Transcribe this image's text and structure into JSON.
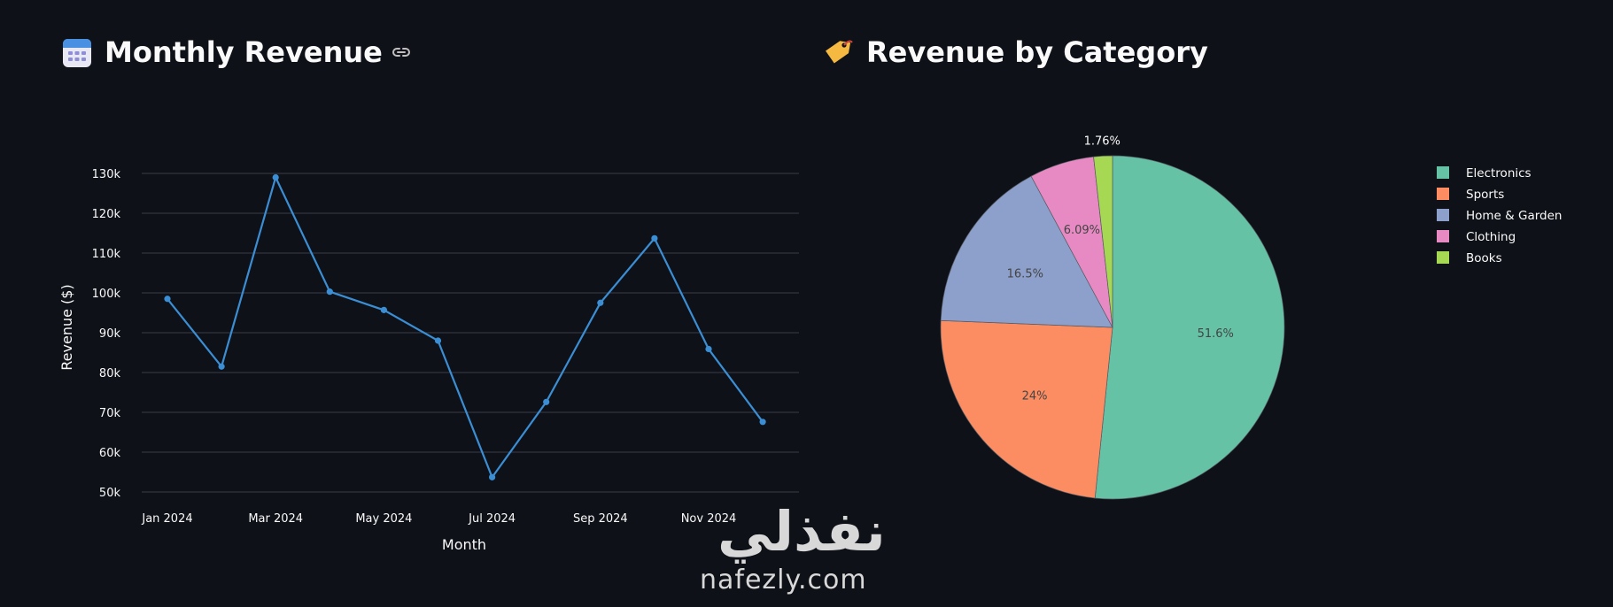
{
  "line_section": {
    "title": "Monthly Revenue",
    "icon": "calendar-icon",
    "link_icon": "link-icon"
  },
  "pie_section": {
    "title": "Revenue by Category",
    "icon": "tag-icon"
  },
  "watermark": {
    "arabic": "نفذلي",
    "latin": "nafezly.com"
  },
  "chart_data": [
    {
      "type": "line",
      "xlabel": "Month",
      "ylabel": "Revenue ($)",
      "x": [
        "2024-01",
        "2024-02",
        "2024-03",
        "2024-04",
        "2024-05",
        "2024-06",
        "2024-07",
        "2024-08",
        "2024-09",
        "2024-10",
        "2024-11",
        "2024-12"
      ],
      "x_tick_labels": [
        "Jan 2024",
        "Mar 2024",
        "May 2024",
        "Jul 2024",
        "Sep 2024",
        "Nov 2024"
      ],
      "y_tick_labels": [
        "50k",
        "60k",
        "70k",
        "80k",
        "90k",
        "100k",
        "110k",
        "120k",
        "130k"
      ],
      "series": [
        {
          "values": [
            98500,
            81500,
            129000,
            100300,
            95700,
            88000,
            53700,
            72600,
            97500,
            113700,
            85900,
            67600
          ],
          "color": "#3b8ed4"
        }
      ],
      "ylim": [
        50000,
        130000
      ],
      "grid": true
    },
    {
      "type": "pie",
      "slices": [
        {
          "label": "Electronics",
          "value": 51.6,
          "text": "51.6%",
          "color": "#66c2a5"
        },
        {
          "label": "Sports",
          "value": 24.0,
          "text": "24%",
          "color": "#fc8d62"
        },
        {
          "label": "Home & Garden",
          "value": 16.5,
          "text": "16.5%",
          "color": "#8da0cb"
        },
        {
          "label": "Clothing",
          "value": 6.09,
          "text": "6.09%",
          "color": "#e78ac3"
        },
        {
          "label": "Books",
          "value": 1.76,
          "text": "1.76%",
          "color": "#a6d854"
        }
      ],
      "legend_position": "top-right",
      "direction": "clockwise",
      "start": "top"
    }
  ]
}
